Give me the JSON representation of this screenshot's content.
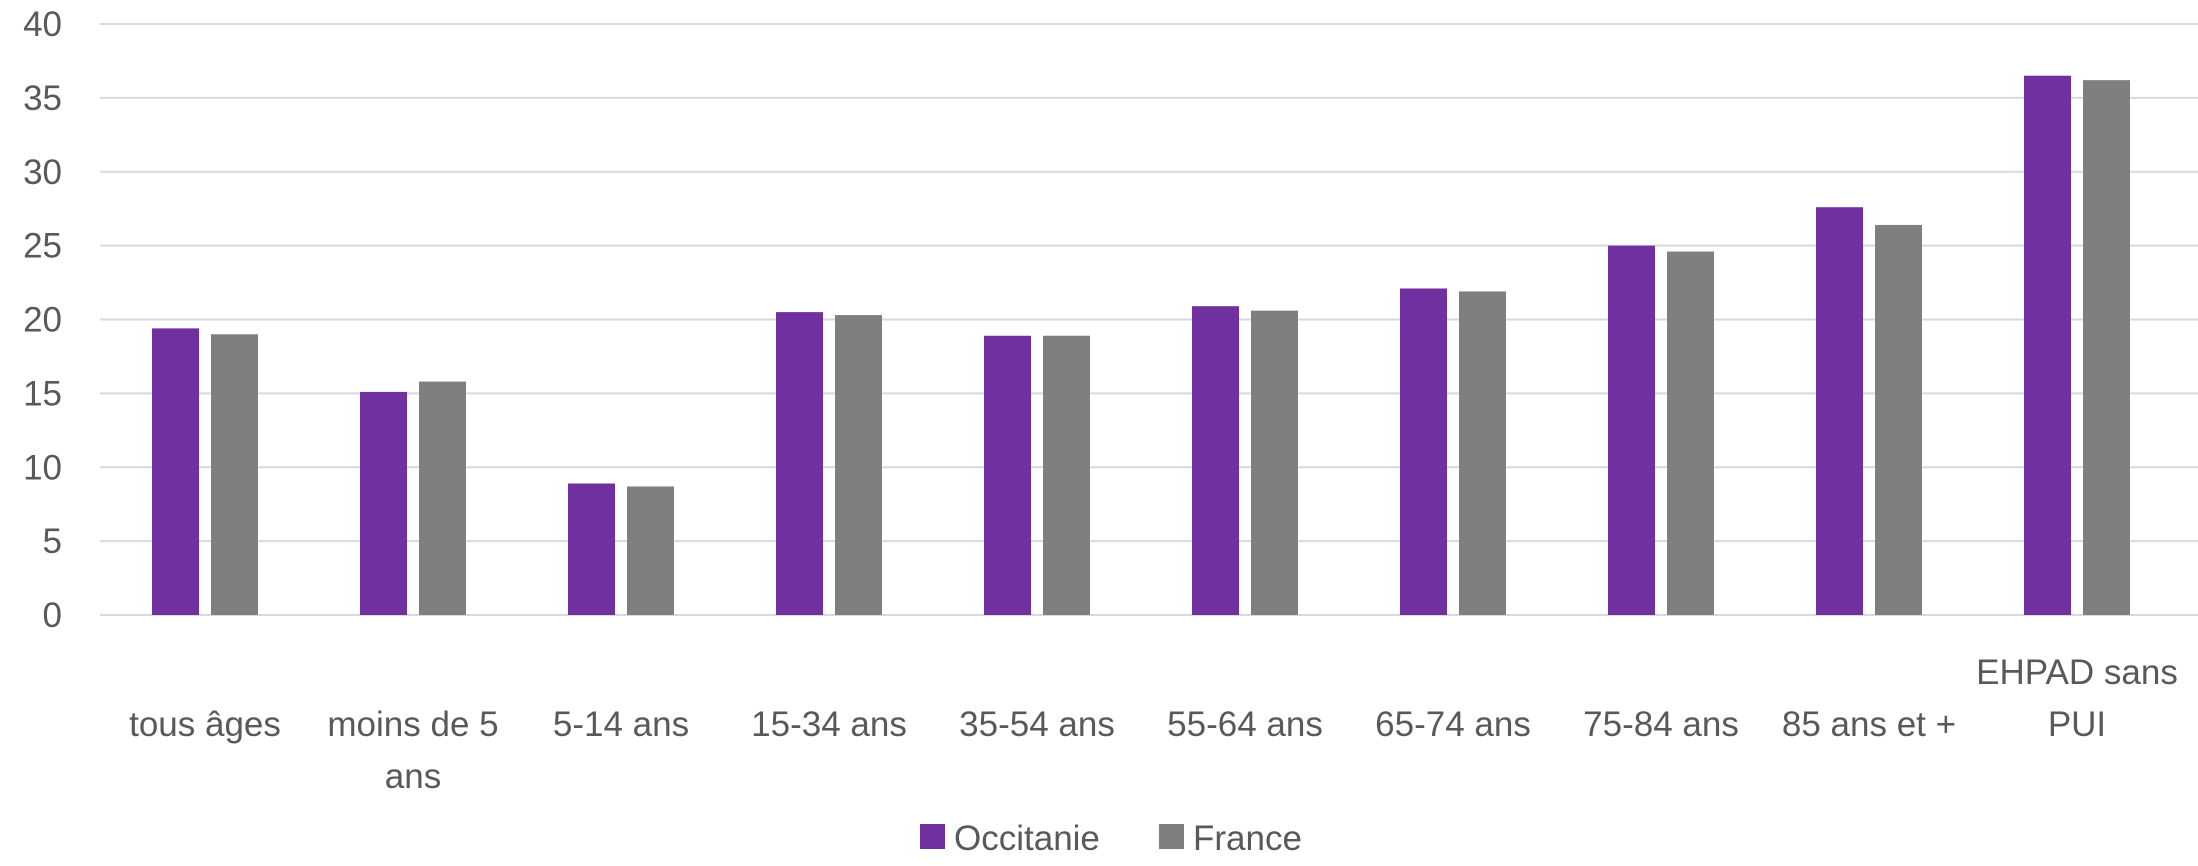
{
  "chart_data": {
    "type": "bar",
    "categories": [
      [
        "tous âges"
      ],
      [
        "moins de 5",
        "ans"
      ],
      [
        "5-14 ans"
      ],
      [
        "15-34 ans"
      ],
      [
        "35-54 ans"
      ],
      [
        "55-64 ans"
      ],
      [
        "65-74 ans"
      ],
      [
        "75-84 ans"
      ],
      [
        "85 ans et +"
      ],
      [
        "EHPAD sans",
        "PUI"
      ]
    ],
    "series": [
      {
        "name": "Occitanie",
        "color": "#7030a0",
        "values": [
          19.4,
          15.1,
          8.9,
          20.5,
          18.9,
          20.9,
          22.1,
          25.0,
          27.6,
          36.5
        ]
      },
      {
        "name": "France",
        "color": "#7f7f7f",
        "values": [
          19.0,
          15.8,
          8.7,
          20.3,
          18.9,
          20.6,
          21.9,
          24.6,
          26.4,
          36.2
        ]
      }
    ],
    "ylim": [
      0,
      40
    ],
    "yticks": [
      0,
      5,
      10,
      15,
      20,
      25,
      30,
      35,
      40
    ],
    "title": "",
    "xlabel": "",
    "ylabel": "",
    "grid": true,
    "legend_position": "bottom"
  }
}
